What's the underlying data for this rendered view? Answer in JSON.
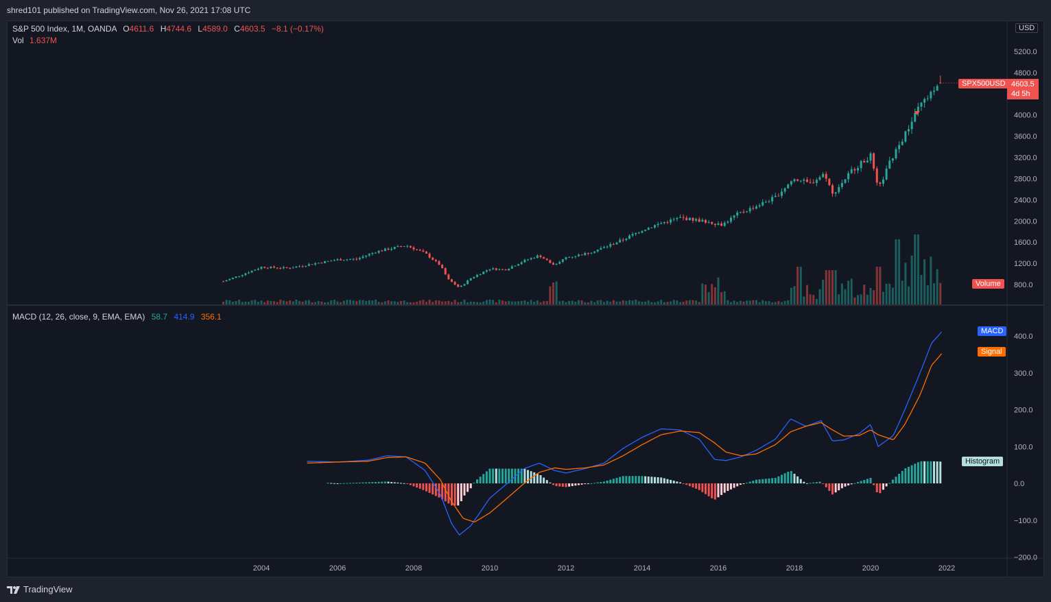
{
  "publisher": "shred101 published on TradingView.com, Nov 26, 2021 17:08 UTC",
  "footer_brand": "TradingView",
  "currency_button": "USD",
  "legend": {
    "symbol": "S&P 500 Index, 1M, OANDA",
    "o_key": "O",
    "o_val": "4611.6",
    "h_key": "H",
    "h_val": "4744.6",
    "l_key": "L",
    "l_val": "4589.0",
    "c_key": "C",
    "c_val": "4603.5",
    "change": "−8.1 (−0.17%)",
    "vol_key": "Vol",
    "vol_val": "1.637M"
  },
  "macd_legend": {
    "title": "MACD (12, 26, close, 9, EMA, EMA)",
    "hist": "58.7",
    "macd": "414.9",
    "signal": "356.1"
  },
  "labels": {
    "symbol_tag": "SPX500USD",
    "last_price": "4603.5",
    "countdown": "4d 5h",
    "volume_tag": "Volume",
    "macd_tag": "MACD",
    "signal_tag": "Signal",
    "hist_tag": "Histogram"
  },
  "colors": {
    "up": "#26a69a",
    "down": "#ef5350",
    "macd": "#2962ff",
    "signal": "#ff6d00",
    "bg": "#131722"
  },
  "chart_data": [
    {
      "type": "candlestick",
      "title": "S&P 500 Index, 1M, OANDA",
      "ylim": [
        400,
        5500
      ],
      "price_ticks": [
        "5200.0",
        "4800.0",
        "4400.0",
        "4000.0",
        "3600.0",
        "3200.0",
        "2800.0",
        "2400.0",
        "2000.0",
        "1600.0",
        "1200.0",
        "800.0"
      ],
      "x_ticks": [
        "2004",
        "2006",
        "2008",
        "2010",
        "2012",
        "2014",
        "2016",
        "2018",
        "2020",
        "2022"
      ],
      "x_start": 2003.0,
      "x_end": 2021.9,
      "monthly_close_anchors": [
        [
          2003.0,
          860
        ],
        [
          2003.5,
          990
        ],
        [
          2004.0,
          1130
        ],
        [
          2004.7,
          1110
        ],
        [
          2005.5,
          1210
        ],
        [
          2006.0,
          1270
        ],
        [
          2006.5,
          1280
        ],
        [
          2007.0,
          1420
        ],
        [
          2007.8,
          1540
        ],
        [
          2008.3,
          1390
        ],
        [
          2008.7,
          1160
        ],
        [
          2008.9,
          900
        ],
        [
          2009.2,
          740
        ],
        [
          2009.5,
          920
        ],
        [
          2010.0,
          1100
        ],
        [
          2010.4,
          1080
        ],
        [
          2010.9,
          1250
        ],
        [
          2011.3,
          1350
        ],
        [
          2011.7,
          1150
        ],
        [
          2012.0,
          1310
        ],
        [
          2012.5,
          1380
        ],
        [
          2013.0,
          1500
        ],
        [
          2013.5,
          1650
        ],
        [
          2014.0,
          1830
        ],
        [
          2014.5,
          1960
        ],
        [
          2015.0,
          2060
        ],
        [
          2015.6,
          2000
        ],
        [
          2016.1,
          1930
        ],
        [
          2016.5,
          2130
        ],
        [
          2017.0,
          2280
        ],
        [
          2017.5,
          2450
        ],
        [
          2018.0,
          2810
        ],
        [
          2018.4,
          2700
        ],
        [
          2018.8,
          2900
        ],
        [
          2019.0,
          2500
        ],
        [
          2019.5,
          2950
        ],
        [
          2020.0,
          3230
        ],
        [
          2020.2,
          2580
        ],
        [
          2020.5,
          3100
        ],
        [
          2020.9,
          3620
        ],
        [
          2021.3,
          4180
        ],
        [
          2021.6,
          4400
        ],
        [
          2021.9,
          4604
        ]
      ],
      "last": {
        "open": 4611.6,
        "high": 4744.6,
        "low": 4589.0,
        "close": 4603.5
      }
    },
    {
      "type": "bar",
      "title": "Volume",
      "last": "1.637M"
    },
    {
      "type": "line",
      "title": "MACD (12, 26, close, 9, EMA, EMA)",
      "ylim": [
        -200,
        440
      ],
      "y_ticks": [
        "400.0",
        "300.0",
        "200.0",
        "100.0",
        "0.0",
        "−100.0",
        "−200.0"
      ],
      "series": [
        {
          "name": "MACD",
          "anchors": [
            [
              2005.2,
              60
            ],
            [
              2006.0,
              58
            ],
            [
              2006.8,
              63
            ],
            [
              2007.3,
              75
            ],
            [
              2007.8,
              72
            ],
            [
              2008.3,
              35
            ],
            [
              2008.7,
              -30
            ],
            [
              2009.0,
              -110
            ],
            [
              2009.2,
              -140
            ],
            [
              2009.5,
              -115
            ],
            [
              2010.0,
              -40
            ],
            [
              2010.4,
              -5
            ],
            [
              2010.9,
              40
            ],
            [
              2011.3,
              55
            ],
            [
              2011.7,
              35
            ],
            [
              2012.0,
              28
            ],
            [
              2012.5,
              40
            ],
            [
              2013.0,
              55
            ],
            [
              2013.5,
              95
            ],
            [
              2014.0,
              125
            ],
            [
              2014.5,
              148
            ],
            [
              2015.0,
              145
            ],
            [
              2015.5,
              120
            ],
            [
              2015.9,
              65
            ],
            [
              2016.2,
              62
            ],
            [
              2016.6,
              72
            ],
            [
              2017.0,
              90
            ],
            [
              2017.5,
              120
            ],
            [
              2017.9,
              175
            ],
            [
              2018.3,
              155
            ],
            [
              2018.7,
              170
            ],
            [
              2019.0,
              115
            ],
            [
              2019.3,
              118
            ],
            [
              2019.7,
              135
            ],
            [
              2020.0,
              160
            ],
            [
              2020.2,
              100
            ],
            [
              2020.6,
              130
            ],
            [
              2020.9,
              200
            ],
            [
              2021.3,
              300
            ],
            [
              2021.6,
              380
            ],
            [
              2021.9,
              415
            ]
          ]
        },
        {
          "name": "Signal",
          "anchors": [
            [
              2005.2,
              55
            ],
            [
              2006.0,
              58
            ],
            [
              2006.8,
              60
            ],
            [
              2007.3,
              70
            ],
            [
              2007.8,
              72
            ],
            [
              2008.3,
              55
            ],
            [
              2008.7,
              10
            ],
            [
              2009.0,
              -50
            ],
            [
              2009.3,
              -95
            ],
            [
              2009.6,
              -105
            ],
            [
              2010.0,
              -80
            ],
            [
              2010.4,
              -45
            ],
            [
              2010.9,
              0
            ],
            [
              2011.3,
              30
            ],
            [
              2011.7,
              42
            ],
            [
              2012.0,
              38
            ],
            [
              2012.5,
              42
            ],
            [
              2013.0,
              50
            ],
            [
              2013.5,
              75
            ],
            [
              2014.0,
              105
            ],
            [
              2014.5,
              132
            ],
            [
              2015.0,
              142
            ],
            [
              2015.5,
              138
            ],
            [
              2015.9,
              110
            ],
            [
              2016.2,
              85
            ],
            [
              2016.6,
              75
            ],
            [
              2017.0,
              80
            ],
            [
              2017.5,
              105
            ],
            [
              2017.9,
              140
            ],
            [
              2018.3,
              155
            ],
            [
              2018.7,
              165
            ],
            [
              2019.0,
              145
            ],
            [
              2019.3,
              128
            ],
            [
              2019.7,
              130
            ],
            [
              2020.0,
              145
            ],
            [
              2020.2,
              132
            ],
            [
              2020.6,
              118
            ],
            [
              2020.9,
              160
            ],
            [
              2021.3,
              240
            ],
            [
              2021.6,
              320
            ],
            [
              2021.9,
              356
            ]
          ]
        }
      ]
    }
  ]
}
